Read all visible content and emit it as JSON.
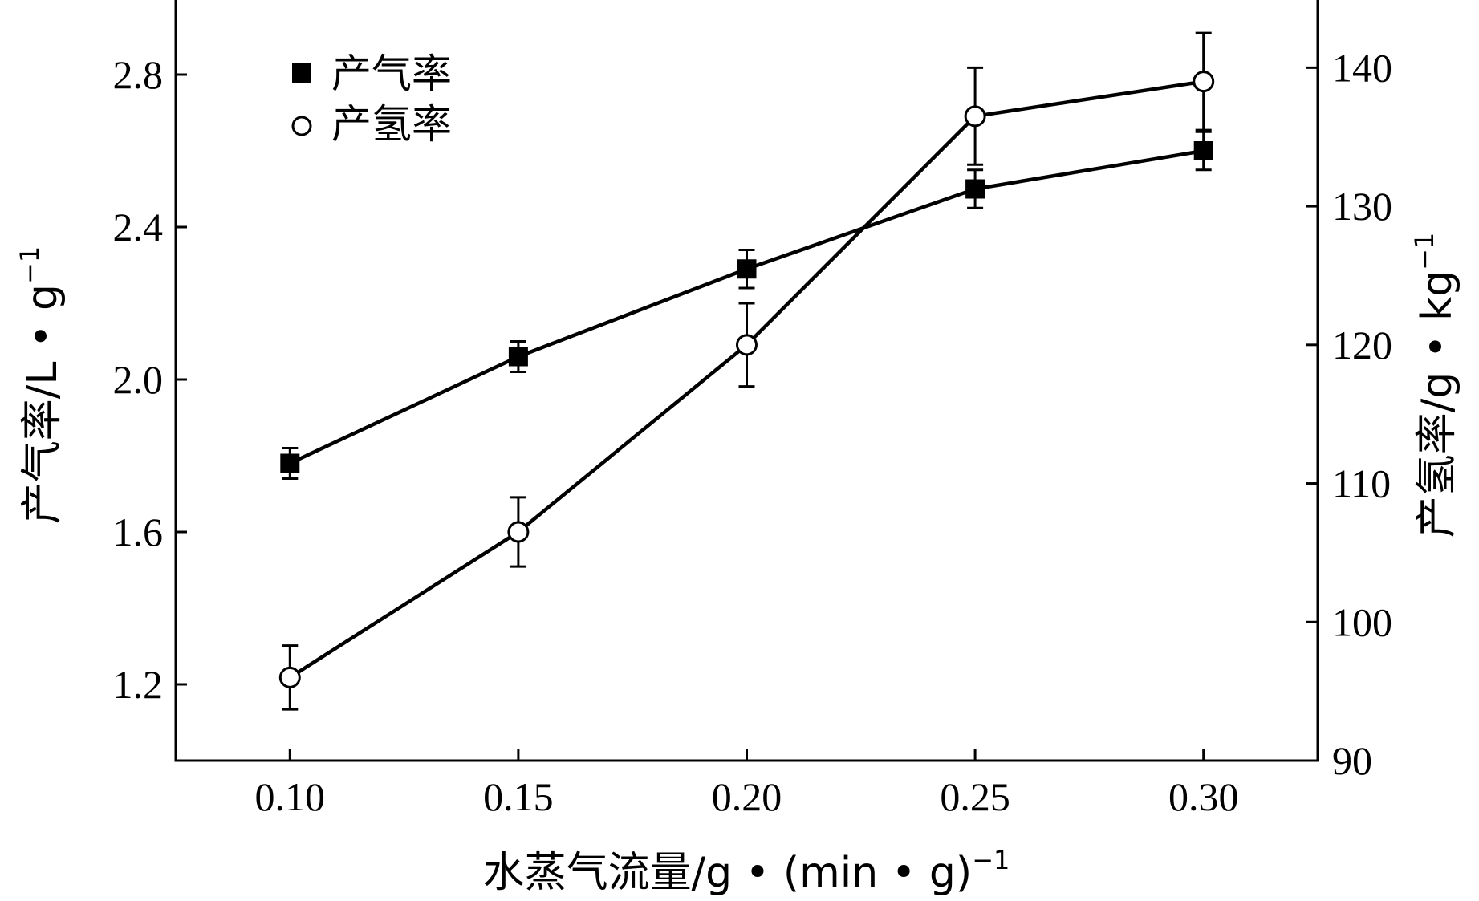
{
  "chart_data": {
    "type": "line",
    "xlabel": "水蒸气流量/g • (min • g)",
    "xlabel_sup": "−1",
    "ylabel_left": "产气率/L • g",
    "ylabel_left_sup": "−1",
    "ylabel_right": "产氢率/g • kg",
    "ylabel_right_sup": "−1",
    "x": [
      0.1,
      0.15,
      0.2,
      0.25,
      0.3
    ],
    "x_tick_labels": [
      "0.10",
      "0.15",
      "0.20",
      "0.25",
      "0.30"
    ],
    "xlim": [
      0.075,
      0.325
    ],
    "ylim_left": [
      1.0,
      3.0
    ],
    "ylim_right": [
      90,
      145
    ],
    "y_left_ticks": [
      1.2,
      1.6,
      2.0,
      2.4,
      2.8
    ],
    "y_left_tick_labels": [
      "1.2",
      "1.6",
      "2.0",
      "2.4",
      "2.8"
    ],
    "y_right_ticks": [
      90,
      100,
      110,
      120,
      130,
      140
    ],
    "y_right_tick_labels": [
      "90",
      "100",
      "110",
      "120",
      "130",
      "140"
    ],
    "legend_position": "top-left",
    "series": [
      {
        "name": "产气率",
        "axis": "left",
        "marker": "filled-square",
        "values": [
          1.78,
          2.06,
          2.29,
          2.5,
          2.6
        ],
        "errors": [
          0.04,
          0.04,
          0.05,
          0.05,
          0.05
        ]
      },
      {
        "name": "产氢率",
        "axis": "right",
        "marker": "open-circle",
        "values": [
          96.0,
          106.5,
          120.0,
          136.5,
          139.0
        ],
        "errors": [
          2.3,
          2.5,
          3.0,
          3.5,
          3.5
        ]
      }
    ]
  }
}
